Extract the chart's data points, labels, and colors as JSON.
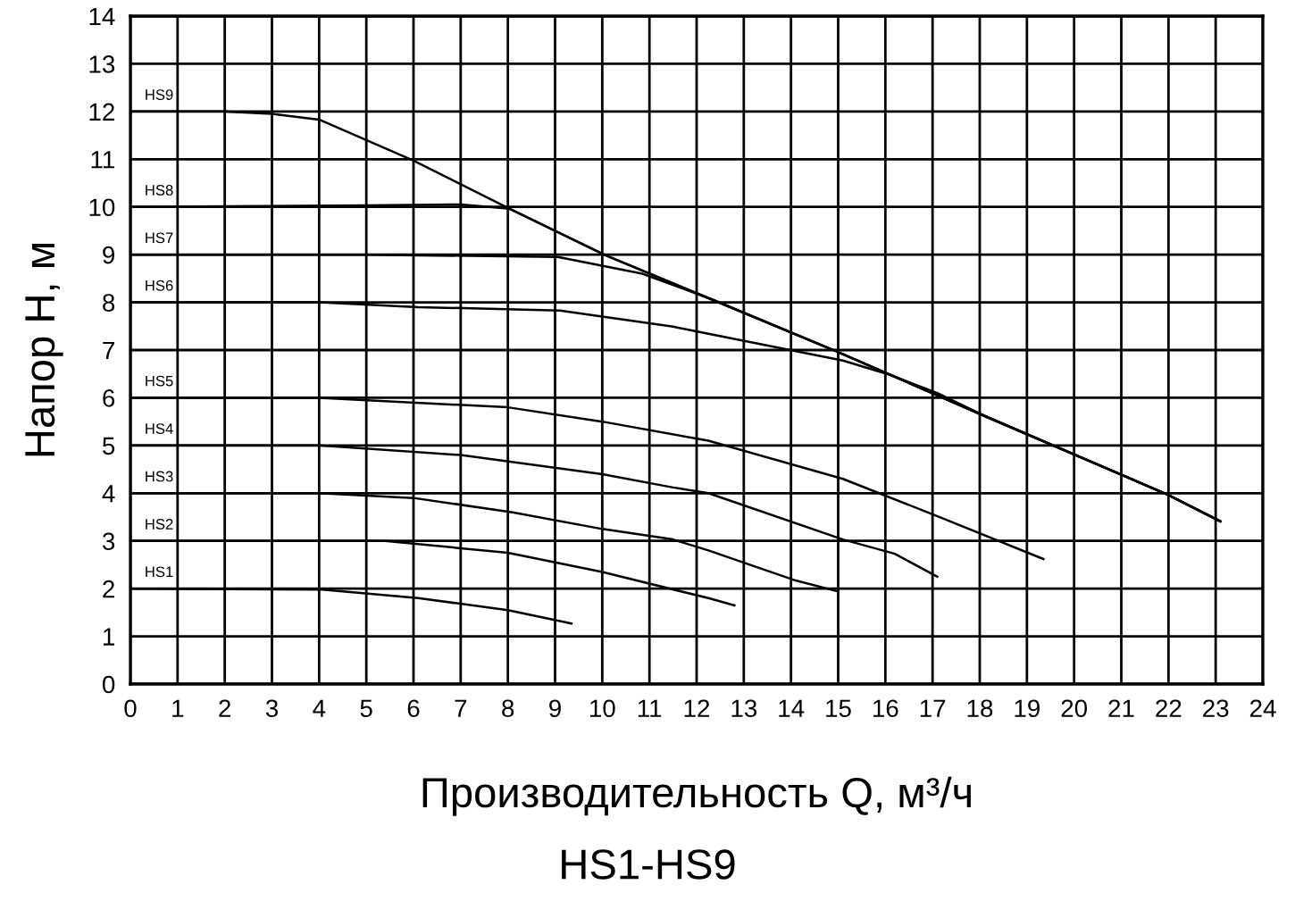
{
  "chart_data": {
    "type": "line",
    "xlabel": "Производительность Q, м³/ч",
    "ylabel": "Напор H, м",
    "annotations": [
      "HS1-HS9"
    ],
    "xlim": [
      0,
      24
    ],
    "ylim": [
      0,
      14
    ],
    "xticks": [
      0,
      1,
      2,
      3,
      4,
      5,
      6,
      7,
      8,
      9,
      10,
      11,
      12,
      13,
      14,
      15,
      16,
      17,
      18,
      19,
      20,
      21,
      22,
      23,
      24
    ],
    "yticks": [
      0,
      1,
      2,
      3,
      4,
      5,
      6,
      7,
      8,
      9,
      10,
      11,
      12,
      13,
      14
    ],
    "grid": true,
    "marker": "none",
    "line_style": "solid",
    "series": [
      {
        "name": "HS1",
        "color": "#000000",
        "x": [
          0,
          4.07,
          6.1,
          8,
          9.35
        ],
        "values": [
          2,
          1.98,
          1.8,
          1.55,
          1.27
        ]
      },
      {
        "name": "HS2",
        "color": "#000000",
        "x": [
          0,
          4,
          5.4,
          8,
          10,
          12.25,
          12.8
        ],
        "values": [
          3,
          3,
          3,
          2.75,
          2.35,
          1.8,
          1.65
        ]
      },
      {
        "name": "HS3",
        "color": "#000000",
        "x": [
          0,
          4,
          6,
          8.1,
          10,
          11.5,
          12.25,
          14.1,
          14.96
        ],
        "values": [
          4,
          4,
          3.9,
          3.6,
          3.25,
          3.03,
          2.8,
          2.17,
          1.95
        ]
      },
      {
        "name": "HS4",
        "color": "#000000",
        "x": [
          0,
          4,
          7,
          10,
          11.5,
          12.25,
          15.1,
          16.2,
          17.1
        ],
        "values": [
          5,
          5,
          4.8,
          4.4,
          4.12,
          4,
          3.03,
          2.73,
          2.25
        ]
      },
      {
        "name": "HS5",
        "color": "#000000",
        "x": [
          0,
          4,
          8,
          10,
          12.25,
          15.1,
          17.2,
          19.35
        ],
        "values": [
          6,
          6,
          5.8,
          5.5,
          5.1,
          4.3,
          3.48,
          2.62
        ]
      },
      {
        "name": "HS6",
        "color": "#000000",
        "x": [
          0,
          4,
          6.1,
          9.1,
          11.5,
          12.25,
          15.1,
          16.1,
          17.1,
          18.1,
          21.98,
          23.1
        ],
        "values": [
          8,
          8,
          7.9,
          7.83,
          7.49,
          7.34,
          6.78,
          6.48,
          6.1,
          5.62,
          3.97,
          3.41
        ]
      },
      {
        "name": "HS7",
        "color": "#000000",
        "x": [
          0,
          5,
          9.06,
          10.85,
          12.25,
          14.97,
          18.1,
          21.98,
          23.1
        ],
        "values": [
          9,
          9,
          8.95,
          8.6,
          8.09,
          6.97,
          5.62,
          3.97,
          3.41
        ]
      },
      {
        "name": "HS8",
        "color": "#000000",
        "x": [
          0,
          5,
          7,
          8.04,
          10.06,
          12.25,
          14.97,
          18.1,
          21.98,
          23.1
        ],
        "values": [
          10,
          10.03,
          10.05,
          9.96,
          8.99,
          8.09,
          6.97,
          5.62,
          3.97,
          3.41
        ]
      },
      {
        "name": "HS9",
        "color": "#000000",
        "x": [
          0,
          2,
          3,
          4,
          6,
          8.04,
          10.06,
          12.25,
          14.97,
          18.1,
          21.98,
          23.1
        ],
        "values": [
          12,
          12,
          11.95,
          11.83,
          10.97,
          9.96,
          8.99,
          8.09,
          6.97,
          5.62,
          3.97,
          3.41
        ]
      }
    ]
  }
}
